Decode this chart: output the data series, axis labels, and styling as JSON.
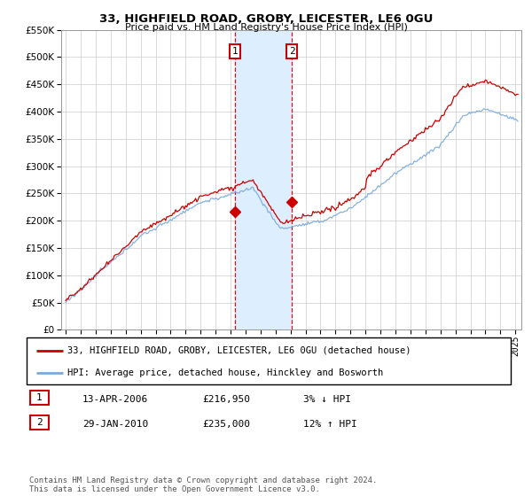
{
  "title": "33, HIGHFIELD ROAD, GROBY, LEICESTER, LE6 0GU",
  "subtitle": "Price paid vs. HM Land Registry's House Price Index (HPI)",
  "legend_line1": "33, HIGHFIELD ROAD, GROBY, LEICESTER, LE6 0GU (detached house)",
  "legend_line2": "HPI: Average price, detached house, Hinckley and Bosworth",
  "footnote": "Contains HM Land Registry data © Crown copyright and database right 2024.\nThis data is licensed under the Open Government Licence v3.0.",
  "transaction1_label": "1",
  "transaction1_date": "13-APR-2006",
  "transaction1_price": "£216,950",
  "transaction1_hpi": "3% ↓ HPI",
  "transaction2_label": "2",
  "transaction2_date": "29-JAN-2010",
  "transaction2_price": "£235,000",
  "transaction2_hpi": "12% ↑ HPI",
  "color_red": "#cc0000",
  "color_blue": "#7aaadd",
  "color_highlight": "#ddeeff",
  "ylim": [
    0,
    550000
  ],
  "yticks": [
    0,
    50000,
    100000,
    150000,
    200000,
    250000,
    300000,
    350000,
    400000,
    450000,
    500000,
    550000
  ],
  "transaction1_x": 2006.28,
  "transaction2_x": 2010.08,
  "background_color": "#ffffff",
  "grid_color": "#cccccc"
}
